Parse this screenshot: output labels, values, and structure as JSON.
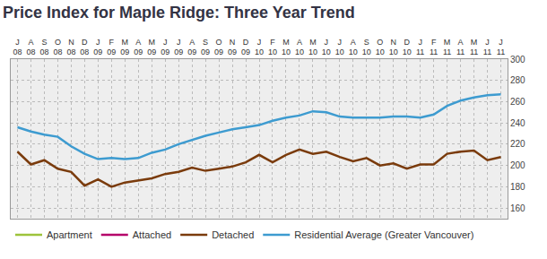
{
  "chart_data": {
    "type": "line",
    "title": "Price Index for Maple Ridge: Three Year Trend",
    "categories": [
      "J 08",
      "A 08",
      "S 08",
      "O 08",
      "N 08",
      "D 08",
      "J 09",
      "F 09",
      "M 09",
      "A 09",
      "M 09",
      "J 09",
      "J 09",
      "A 09",
      "S 09",
      "O 09",
      "N 09",
      "D 09",
      "J 10",
      "F 10",
      "M 10",
      "A 10",
      "M 10",
      "J 10",
      "J 10",
      "A 10",
      "S 10",
      "O 10",
      "N 10",
      "D 10",
      "J 11",
      "F 11",
      "M 11",
      "A 11",
      "M 11",
      "J 11",
      "J 11"
    ],
    "series": [
      {
        "name": "Apartment",
        "color": "#9dc33b",
        "values": [
          null,
          null,
          null,
          null,
          null,
          null,
          null,
          null,
          null,
          null,
          null,
          null,
          null,
          null,
          null,
          null,
          null,
          null,
          null,
          null,
          null,
          null,
          null,
          null,
          null,
          null,
          null,
          null,
          null,
          null,
          null,
          null,
          null,
          null,
          null,
          null,
          null
        ]
      },
      {
        "name": "Attached",
        "color": "#b5006a",
        "values": [
          null,
          null,
          null,
          null,
          null,
          null,
          null,
          null,
          null,
          null,
          null,
          null,
          null,
          null,
          null,
          null,
          null,
          null,
          null,
          null,
          null,
          null,
          null,
          null,
          null,
          null,
          null,
          null,
          null,
          null,
          null,
          null,
          null,
          null,
          null,
          null,
          null
        ]
      },
      {
        "name": "Detached",
        "color": "#7a3b0c",
        "values": [
          213,
          201,
          205,
          197,
          194,
          181,
          187,
          180,
          184,
          186,
          188,
          192,
          194,
          198,
          195,
          197,
          199,
          203,
          210,
          203,
          210,
          215,
          211,
          213,
          208,
          204,
          207,
          200,
          202,
          197,
          201,
          201,
          211,
          213,
          214,
          205,
          208
        ]
      },
      {
        "name": "Residential Average (Greater Vancouver)",
        "color": "#3d9bd0",
        "values": [
          236,
          232,
          229,
          227,
          218,
          211,
          206,
          207,
          206,
          207,
          212,
          215,
          220,
          224,
          228,
          231,
          234,
          236,
          238,
          242,
          245,
          247,
          251,
          250,
          246,
          245,
          245,
          245,
          246,
          246,
          245,
          248,
          256,
          261,
          264,
          266,
          267
        ]
      }
    ],
    "ylim": [
      150,
      300
    ],
    "yticks": [
      160,
      180,
      200,
      220,
      240,
      260,
      280,
      300
    ],
    "grid": true,
    "legend": "bottom"
  }
}
